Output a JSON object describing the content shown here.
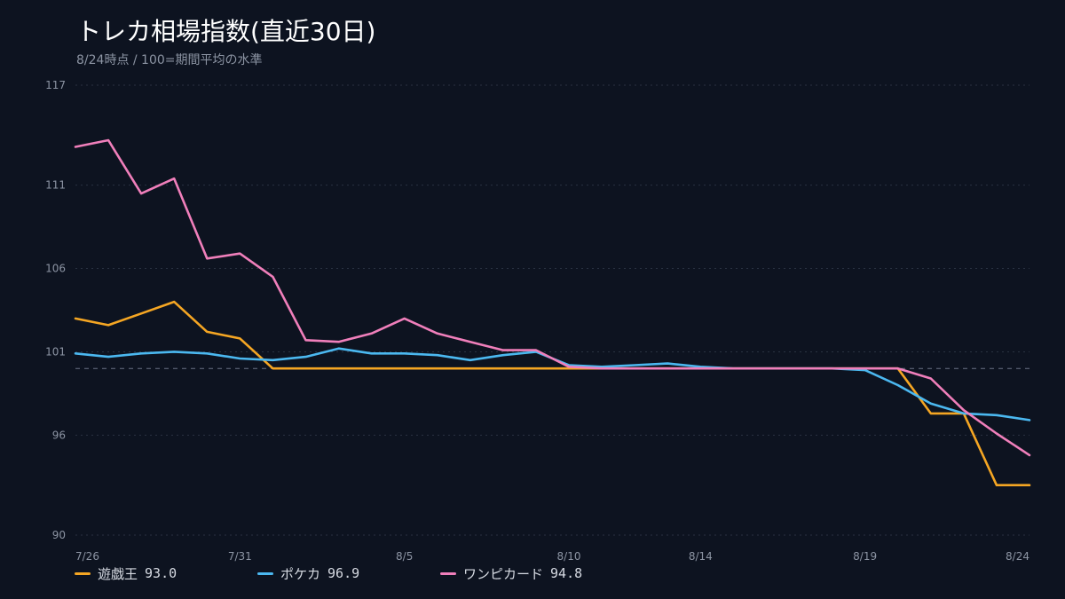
{
  "title": "トレカ相場指数(直近30日)",
  "subtitle": "8/24時点 / 100=期間平均の水準",
  "colors": {
    "background": "#0d1320",
    "grid": "#2a3242",
    "baseline": "#6b7384",
    "tick": "#8c94a3"
  },
  "chart_data": {
    "type": "line",
    "title": "トレカ相場指数(直近30日)",
    "subtitle": "8/24時点 / 100=期間平均の水準",
    "x": [
      "7/26",
      "7/27",
      "7/28",
      "7/29",
      "7/30",
      "7/31",
      "8/1",
      "8/2",
      "8/3",
      "8/4",
      "8/5",
      "8/6",
      "8/7",
      "8/8",
      "8/9",
      "8/10",
      "8/11",
      "8/12",
      "8/13",
      "8/14",
      "8/15",
      "8/16",
      "8/17",
      "8/18",
      "8/19",
      "8/20",
      "8/21",
      "8/22",
      "8/23",
      "8/24"
    ],
    "x_ticks": [
      "7/26",
      "7/31",
      "8/5",
      "8/10",
      "8/14",
      "8/19",
      "8/24"
    ],
    "y_ticks": [
      117,
      111,
      106,
      101,
      96,
      90
    ],
    "ylim": [
      90,
      117
    ],
    "baseline": 100,
    "grid": true,
    "legend_position": "bottom",
    "series": [
      {
        "name": "遊戯王",
        "color": "#f5a623",
        "last_label": "93.0",
        "values": [
          103.0,
          102.6,
          103.3,
          104.0,
          102.2,
          101.8,
          100.0,
          100.0,
          100.0,
          100.0,
          100.0,
          100.0,
          100.0,
          100.0,
          100.0,
          100.0,
          100.0,
          100.0,
          100.0,
          100.0,
          100.0,
          100.0,
          100.0,
          100.0,
          100.0,
          100.0,
          97.3,
          97.3,
          93.0,
          93.0
        ]
      },
      {
        "name": "ポケカ",
        "color": "#4bb8f0",
        "last_label": "96.9",
        "values": [
          100.9,
          100.7,
          100.9,
          101.0,
          100.9,
          100.6,
          100.5,
          100.7,
          101.2,
          100.9,
          100.9,
          100.8,
          100.5,
          100.8,
          101.0,
          100.2,
          100.1,
          100.2,
          100.3,
          100.1,
          100.0,
          100.0,
          100.0,
          100.0,
          99.9,
          99.0,
          97.9,
          97.3,
          97.2,
          96.9
        ]
      },
      {
        "name": "ワンピカード",
        "color": "#f07fbb",
        "last_label": "94.8",
        "values": [
          113.3,
          113.7,
          110.5,
          111.4,
          106.6,
          106.9,
          105.5,
          101.7,
          101.6,
          102.1,
          103.0,
          102.1,
          101.6,
          101.1,
          101.1,
          100.1,
          100.0,
          100.0,
          100.0,
          100.0,
          100.0,
          100.0,
          100.0,
          100.0,
          100.0,
          100.0,
          99.4,
          97.5,
          96.1,
          94.8
        ]
      }
    ]
  }
}
